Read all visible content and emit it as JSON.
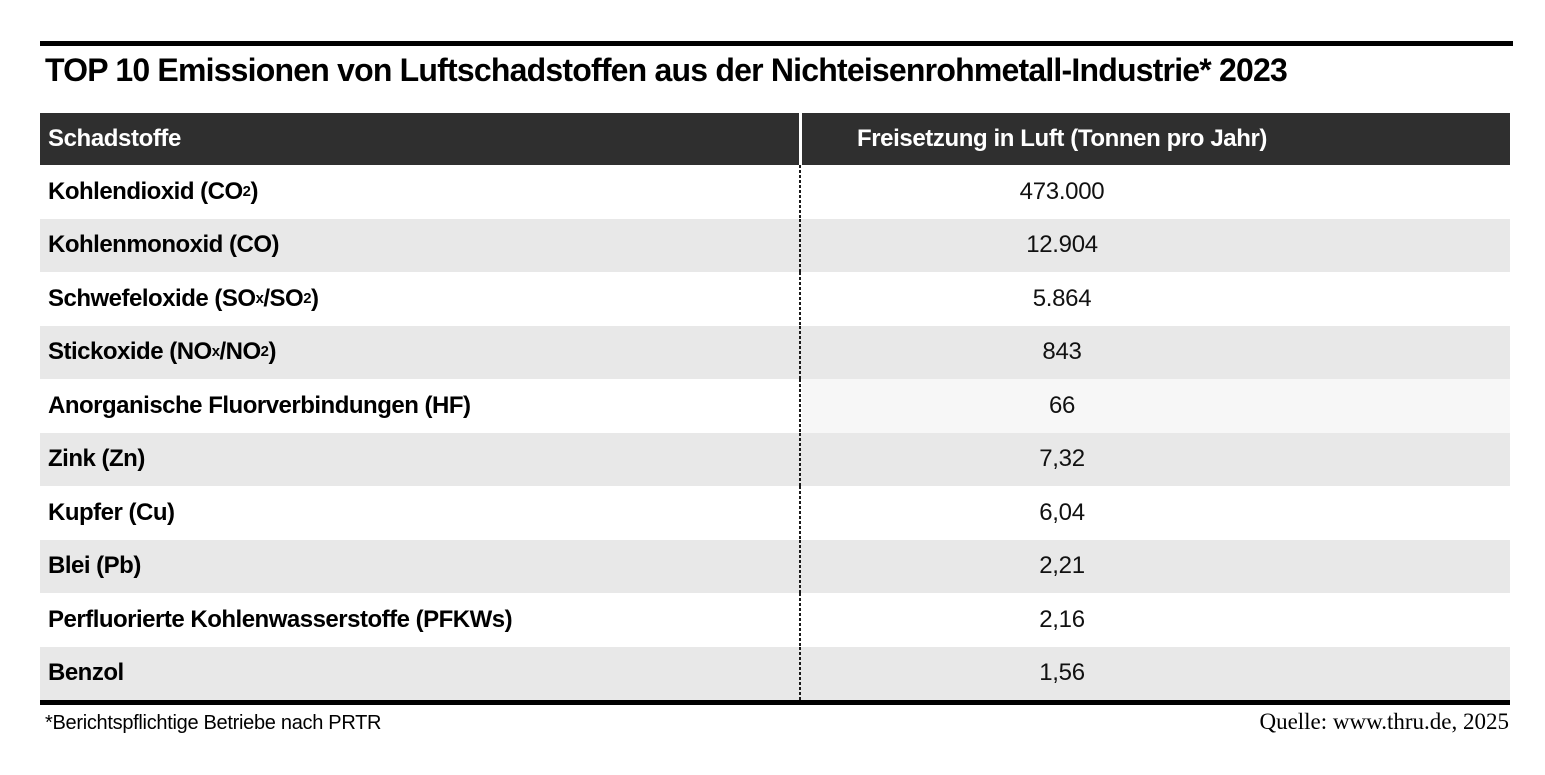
{
  "title": "TOP 10 Emissionen von Luftschadstoffen aus der Nichteisenrohmetall-Industrie* 2023",
  "table": {
    "columns": [
      "Schadstoffe",
      "Freisetzung in Luft (Tonnen pro Jahr)"
    ],
    "rows": [
      {
        "label": "Kohlendioxid (CO_{2})",
        "value": "473.000"
      },
      {
        "label": "Kohlenmonoxid (CO)",
        "value": "12.904"
      },
      {
        "label": "Schwefeloxide (SO_{x}/SO_{2})",
        "value": "5.864"
      },
      {
        "label": "Stickoxide (NO_{x}/NO_{2})",
        "value": "843"
      },
      {
        "label": "Anorganische Fluorverbindungen (HF)",
        "value": "66",
        "value_bg": "#f7f7f7"
      },
      {
        "label": "Zink (Zn)",
        "value": "7,32"
      },
      {
        "label": "Kupfer (Cu)",
        "value": "6,04"
      },
      {
        "label": "Blei (Pb)",
        "value": "2,21"
      },
      {
        "label": "Perfluorierte Kohlenwasserstoffe (PFKWs)",
        "value": "2,16"
      },
      {
        "label": "Benzol",
        "value": "1,56"
      }
    ]
  },
  "footnote": "*Berichtspflichtige Betriebe nach PRTR",
  "source": "Quelle: www.thru.de, 2025",
  "colors": {
    "header-bg": "#2f2f2f",
    "header-text": "#ffffff",
    "row-alt-bg": "#e8e8e8",
    "row5-value-bg": "#f7f7f7",
    "rule": "#000000",
    "text": "#000000",
    "page-bg": "#ffffff"
  },
  "chart_data": {
    "type": "table",
    "title": "TOP 10 Emissionen von Luftschadstoffen aus der Nichteisenrohmetall-Industrie* 2023",
    "columns": [
      "Schadstoffe",
      "Freisetzung in Luft (Tonnen pro Jahr)"
    ],
    "categories": [
      "Kohlendioxid (CO2)",
      "Kohlenmonoxid (CO)",
      "Schwefeloxide (SOx/SO2)",
      "Stickoxide (NOx/NO2)",
      "Anorganische Fluorverbindungen (HF)",
      "Zink (Zn)",
      "Kupfer (Cu)",
      "Blei (Pb)",
      "Perfluorierte Kohlenwasserstoffe (PFKWs)",
      "Benzol"
    ],
    "values": [
      473000,
      12904,
      5864,
      843,
      66,
      7.32,
      6.04,
      2.21,
      2.16,
      1.56
    ],
    "values_display": [
      "473.000",
      "12.904",
      "5.864",
      "843",
      "66",
      "7,32",
      "6,04",
      "2,21",
      "2,16",
      "1,56"
    ],
    "unit": "Tonnen pro Jahr",
    "footnote": "*Berichtspflichtige Betriebe nach PRTR",
    "source": "Quelle: www.thru.de, 2025"
  }
}
